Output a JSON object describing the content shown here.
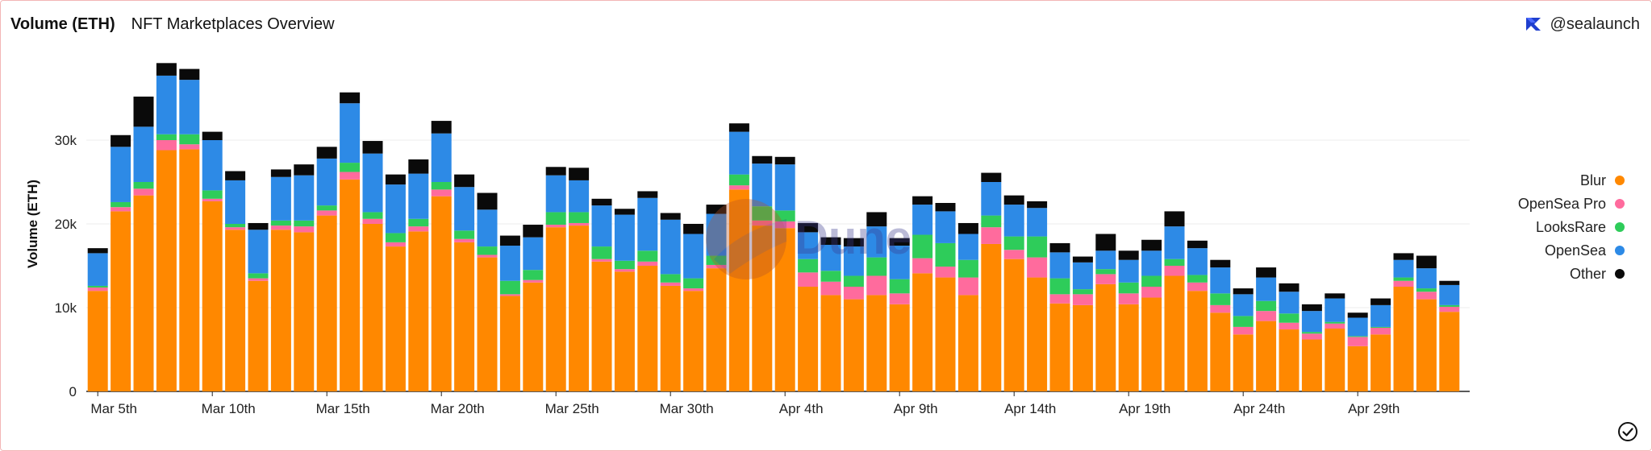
{
  "header": {
    "title": "Volume (ETH)",
    "subtitle": "NFT Marketplaces Overview",
    "brand_handle": "@sealaunch"
  },
  "icons": {
    "brand": "sealaunch-logo-icon",
    "status": "check-circle-icon",
    "watermark": "dune-watermark-icon"
  },
  "watermark": {
    "text": "Dune"
  },
  "chart_data": {
    "type": "bar",
    "stacked": true,
    "ylabel": "Volume (ETH)",
    "xlabel": "",
    "ylim": [
      0,
      40000
    ],
    "yticks": [
      0,
      10000,
      20000,
      30000
    ],
    "ytick_labels": [
      "0",
      "10k",
      "20k",
      "30k"
    ],
    "grid": true,
    "legend_position": "right",
    "x_tick_labels": [
      {
        "index": 0,
        "label": "Mar 5th"
      },
      {
        "index": 5,
        "label": "Mar 10th"
      },
      {
        "index": 10,
        "label": "Mar 15th"
      },
      {
        "index": 15,
        "label": "Mar 20th"
      },
      {
        "index": 20,
        "label": "Mar 25th"
      },
      {
        "index": 25,
        "label": "Mar 30th"
      },
      {
        "index": 30,
        "label": "Apr 4th"
      },
      {
        "index": 35,
        "label": "Apr 9th"
      },
      {
        "index": 40,
        "label": "Apr 14th"
      },
      {
        "index": 45,
        "label": "Apr 19th"
      },
      {
        "index": 50,
        "label": "Apr 24th"
      },
      {
        "index": 55,
        "label": "Apr 29th"
      }
    ],
    "series": [
      {
        "name": "Blur",
        "color": "#ff8800",
        "values": [
          12000,
          21500,
          23400,
          28800,
          28900,
          22700,
          19300,
          13200,
          19300,
          19000,
          21000,
          25300,
          20000,
          17300,
          19100,
          23300,
          17800,
          16000,
          11400,
          13000,
          19600,
          19800,
          15500,
          14300,
          15000,
          12600,
          12000,
          14700,
          24100,
          19800,
          19500,
          12500,
          11500,
          11000,
          11500,
          10400,
          14100,
          13600,
          11500,
          17600,
          15800,
          13600,
          10500,
          10300,
          12800,
          10400,
          11200,
          13800,
          12000,
          9400,
          6800,
          8400,
          7400,
          6200,
          7500,
          5400,
          6800,
          12500,
          11000,
          9500
        ]
      },
      {
        "name": "OpenSea Pro",
        "color": "#ff6b9d",
        "values": [
          400,
          500,
          800,
          1200,
          600,
          300,
          300,
          300,
          500,
          700,
          600,
          900,
          600,
          500,
          600,
          800,
          400,
          300,
          200,
          300,
          300,
          300,
          300,
          300,
          500,
          400,
          300,
          400,
          500,
          600,
          800,
          1700,
          1600,
          1500,
          2300,
          1300,
          1800,
          1300,
          2100,
          2000,
          1100,
          2400,
          1100,
          1300,
          1200,
          1300,
          1300,
          1200,
          1000,
          900,
          900,
          1200,
          800,
          700,
          600,
          1100,
          800,
          700,
          900,
          600
        ]
      },
      {
        "name": "LooksRare",
        "color": "#2ecc5a",
        "values": [
          200,
          600,
          800,
          700,
          1200,
          1000,
          400,
          600,
          600,
          700,
          600,
          1100,
          800,
          1100,
          900,
          900,
          1000,
          1000,
          1600,
          1200,
          1500,
          1300,
          1500,
          1000,
          1300,
          1000,
          1200,
          1100,
          1300,
          1700,
          1300,
          1600,
          1300,
          1300,
          2200,
          1700,
          2800,
          2800,
          2100,
          1400,
          1600,
          2500,
          1900,
          600,
          600,
          1300,
          1300,
          800,
          900,
          1400,
          1300,
          1200,
          1100,
          200,
          200,
          100,
          100,
          400,
          400,
          200
        ]
      },
      {
        "name": "OpenSea",
        "color": "#2d8ae6",
        "values": [
          3900,
          6600,
          6600,
          7000,
          6500,
          6000,
          5200,
          5200,
          5200,
          5400,
          5600,
          7100,
          7000,
          5800,
          5400,
          5800,
          5200,
          4400,
          4200,
          3900,
          4400,
          3800,
          4900,
          5500,
          6300,
          6500,
          5300,
          5000,
          5100,
          5100,
          5500,
          3200,
          3100,
          3500,
          3700,
          4000,
          3600,
          3800,
          3100,
          4000,
          3800,
          3400,
          3100,
          3200,
          2200,
          2700,
          3000,
          3900,
          3200,
          3100,
          2600,
          2800,
          2600,
          2500,
          2800,
          2200,
          2600,
          2100,
          2400,
          2400
        ]
      },
      {
        "name": "Other",
        "color": "#0a0a0a",
        "values": [
          600,
          1400,
          3600,
          1500,
          1300,
          1000,
          1100,
          800,
          900,
          1300,
          1400,
          1300,
          1500,
          1200,
          1700,
          1500,
          1500,
          2000,
          1200,
          1500,
          1000,
          1500,
          800,
          700,
          800,
          800,
          1200,
          1100,
          1000,
          900,
          900,
          1100,
          900,
          1000,
          1700,
          900,
          1000,
          1000,
          1300,
          1100,
          1100,
          800,
          1100,
          700,
          2000,
          1100,
          1300,
          1800,
          900,
          900,
          700,
          1200,
          1000,
          800,
          600,
          600,
          800,
          800,
          1500,
          500
        ]
      }
    ]
  }
}
